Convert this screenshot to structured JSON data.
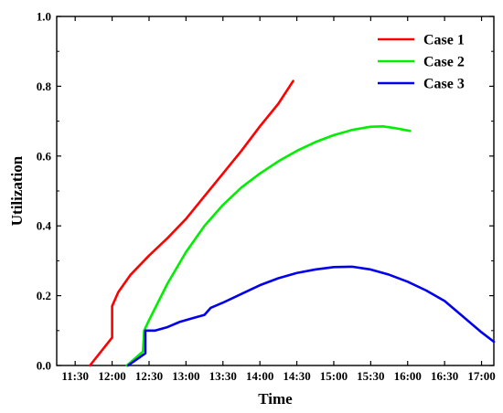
{
  "chart_data": {
    "type": "line",
    "xlabel": "Time",
    "ylabel": "Utilization",
    "x_ticks": [
      "11:30",
      "12:00",
      "12:30",
      "13:00",
      "13:30",
      "14:00",
      "14:30",
      "15:00",
      "15:30",
      "16:00",
      "16:30",
      "17:00"
    ],
    "y_ticks": [
      "0.0",
      "0.2",
      "0.4",
      "0.6",
      "0.8",
      "1.0"
    ],
    "xlim": [
      "11:15",
      "17:10"
    ],
    "ylim": [
      0,
      1.0
    ],
    "legend_position": "top-right",
    "series": [
      {
        "name": "Case 1",
        "color": "#ff0000",
        "points": [
          [
            "11:42",
            0.0
          ],
          [
            "12:00",
            0.08
          ],
          [
            "12:00",
            0.17
          ],
          [
            "12:05",
            0.21
          ],
          [
            "12:15",
            0.26
          ],
          [
            "12:30",
            0.315
          ],
          [
            "12:45",
            0.365
          ],
          [
            "13:00",
            0.42
          ],
          [
            "13:15",
            0.485
          ],
          [
            "13:30",
            0.55
          ],
          [
            "13:45",
            0.615
          ],
          [
            "14:00",
            0.685
          ],
          [
            "14:15",
            0.75
          ],
          [
            "14:27",
            0.815
          ]
        ]
      },
      {
        "name": "Case 2",
        "color": "#00ee00",
        "points": [
          [
            "12:12",
            0.0
          ],
          [
            "12:25",
            0.04
          ],
          [
            "12:26",
            0.1
          ],
          [
            "12:30",
            0.13
          ],
          [
            "12:45",
            0.235
          ],
          [
            "13:00",
            0.325
          ],
          [
            "13:15",
            0.4
          ],
          [
            "13:30",
            0.46
          ],
          [
            "13:45",
            0.51
          ],
          [
            "14:00",
            0.55
          ],
          [
            "14:15",
            0.585
          ],
          [
            "14:30",
            0.615
          ],
          [
            "14:45",
            0.64
          ],
          [
            "15:00",
            0.66
          ],
          [
            "15:15",
            0.675
          ],
          [
            "15:30",
            0.684
          ],
          [
            "15:40",
            0.685
          ],
          [
            "15:50",
            0.68
          ],
          [
            "16:02",
            0.672
          ]
        ]
      },
      {
        "name": "Case 3",
        "color": "#0000ee",
        "points": [
          [
            "12:13",
            0.0
          ],
          [
            "12:25",
            0.03
          ],
          [
            "12:27",
            0.035
          ],
          [
            "12:27",
            0.1
          ],
          [
            "12:35",
            0.1
          ],
          [
            "12:45",
            0.11
          ],
          [
            "12:55",
            0.125
          ],
          [
            "13:05",
            0.135
          ],
          [
            "13:15",
            0.145
          ],
          [
            "13:20",
            0.165
          ],
          [
            "13:30",
            0.18
          ],
          [
            "13:45",
            0.205
          ],
          [
            "14:00",
            0.23
          ],
          [
            "14:15",
            0.25
          ],
          [
            "14:30",
            0.265
          ],
          [
            "14:45",
            0.275
          ],
          [
            "15:00",
            0.282
          ],
          [
            "15:15",
            0.283
          ],
          [
            "15:30",
            0.275
          ],
          [
            "15:45",
            0.26
          ],
          [
            "16:00",
            0.24
          ],
          [
            "16:15",
            0.215
          ],
          [
            "16:30",
            0.185
          ],
          [
            "16:45",
            0.14
          ],
          [
            "17:00",
            0.095
          ],
          [
            "17:10",
            0.068
          ]
        ]
      }
    ]
  }
}
